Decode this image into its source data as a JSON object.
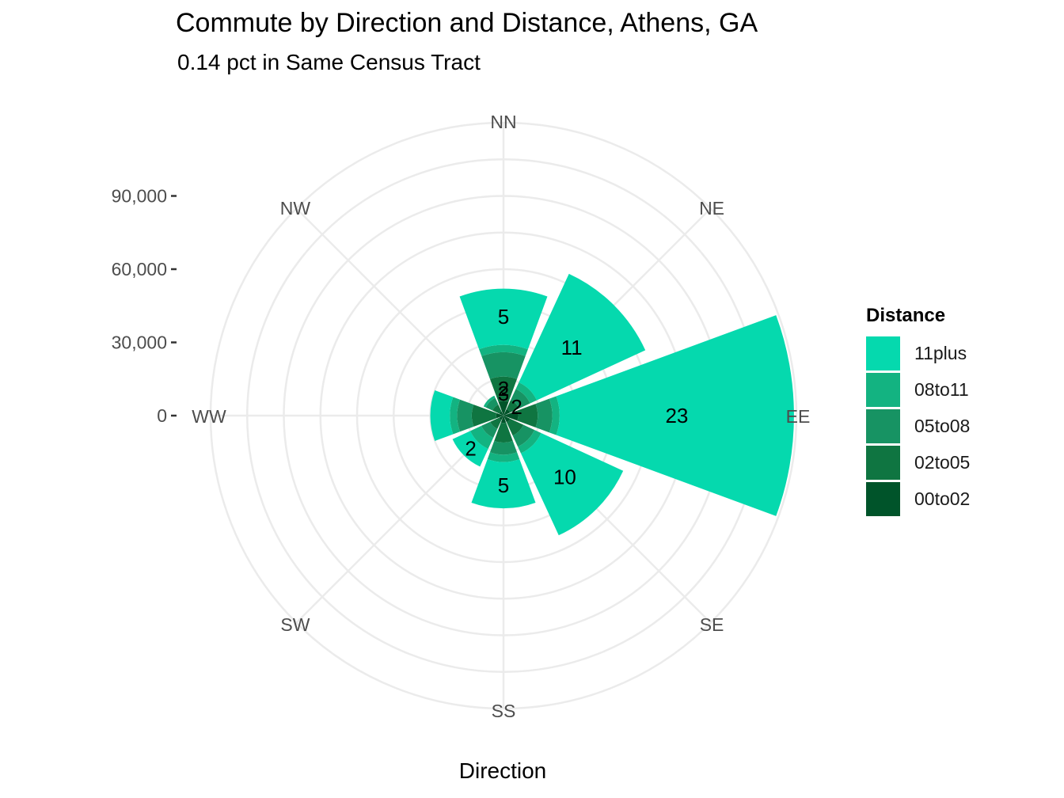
{
  "chart_data": {
    "type": "bar",
    "coordinate_system": "polar",
    "title": "Commute by Direction and Distance, Athens, GA",
    "subtitle": "0.14 pct in Same Census Tract",
    "xlabel": "Direction",
    "ylabel": "",
    "categories": [
      "NN",
      "NE",
      "EE",
      "SE",
      "SS",
      "SW",
      "WW",
      "NW"
    ],
    "y_ticks": [
      "0",
      "30,000",
      "60,000",
      "90,000"
    ],
    "y_tick_values": [
      0,
      30000,
      60000,
      90000
    ],
    "ylim": [
      0,
      120000
    ],
    "legend_title": "Distance",
    "legend_position": "right",
    "grid": true,
    "series": [
      {
        "name": "00to02",
        "color": "#00542A",
        "values": [
          6000,
          3000,
          6000,
          3000,
          3000,
          2000,
          3000,
          2000
        ]
      },
      {
        "name": "02to05",
        "color": "#0F7541",
        "values": [
          10000,
          4000,
          8000,
          6000,
          8000,
          4000,
          10000,
          3000
        ]
      },
      {
        "name": "05to08",
        "color": "#179363",
        "values": [
          10000,
          5000,
          6000,
          5000,
          5000,
          4000,
          6000,
          3000
        ]
      },
      {
        "name": "08to11",
        "color": "#13B381",
        "values": [
          3000,
          3000,
          3000,
          3000,
          3000,
          5000,
          3000,
          1000
        ]
      },
      {
        "name": "11plus",
        "color": "#05D9AE",
        "values": [
          23000,
          49000,
          96000,
          37000,
          19000,
          8000,
          8000,
          0
        ]
      }
    ],
    "bar_labels": [
      {
        "category": "NN",
        "text": "5"
      },
      {
        "category": "NE",
        "text": "11"
      },
      {
        "category": "EE",
        "text": "23"
      },
      {
        "category": "SE",
        "text": "10"
      },
      {
        "category": "SS",
        "text": "5"
      },
      {
        "category": "SW",
        "text": "2"
      },
      {
        "category": "NN",
        "text": "2"
      },
      {
        "category": "NN",
        "text": "3"
      },
      {
        "category": "NE",
        "text": "2"
      }
    ]
  }
}
